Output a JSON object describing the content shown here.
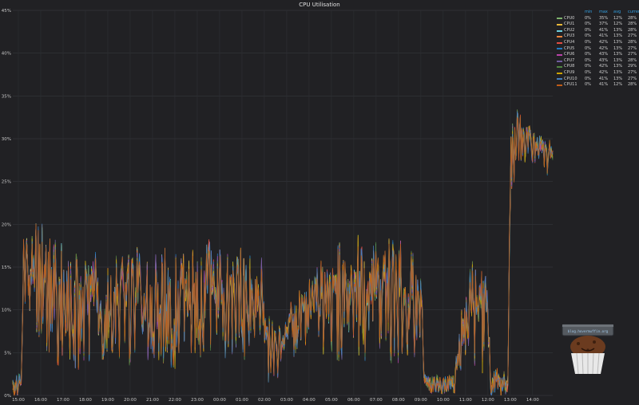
{
  "panel": {
    "title": "CPU Utilisation"
  },
  "logo": {
    "text": "blog.hovermuffin.org",
    "description": "muffin-logo"
  },
  "chart_data": {
    "type": "line",
    "title": "CPU Utilisation",
    "xlabel": "",
    "ylabel": "",
    "x_ticks": [
      "15:00",
      "16:00",
      "17:00",
      "18:00",
      "19:00",
      "20:00",
      "21:00",
      "22:00",
      "23:00",
      "00:00",
      "01:00",
      "02:00",
      "03:00",
      "04:00",
      "05:00",
      "06:00",
      "07:00",
      "08:00",
      "09:00",
      "10:00",
      "11:00",
      "12:00",
      "13:00",
      "14:00"
    ],
    "xlim_hours": [
      -0.25,
      23.9
    ],
    "y_ticks": [
      "0%",
      "5%",
      "10%",
      "15%",
      "20%",
      "25%",
      "30%",
      "35%",
      "40%",
      "45%"
    ],
    "ylim": [
      0,
      45
    ],
    "y_unit": "%",
    "grid": true,
    "legend_placement": "top-right",
    "legend_columns": [
      "min",
      "max",
      "avg",
      "current"
    ],
    "series": [
      {
        "name": "CPU0",
        "color": "#7eb26d",
        "min": "0%",
        "max": "35%",
        "avg": "12%",
        "current": "28%"
      },
      {
        "name": "CPU1",
        "color": "#eab839",
        "min": "0%",
        "max": "37%",
        "avg": "12%",
        "current": "28%"
      },
      {
        "name": "CPU2",
        "color": "#6ed0e0",
        "min": "0%",
        "max": "41%",
        "avg": "13%",
        "current": "28%"
      },
      {
        "name": "CPU3",
        "color": "#ef843c",
        "min": "0%",
        "max": "41%",
        "avg": "13%",
        "current": "27%"
      },
      {
        "name": "CPU4",
        "color": "#e24d42",
        "min": "0%",
        "max": "42%",
        "avg": "13%",
        "current": "28%"
      },
      {
        "name": "CPU5",
        "color": "#1f78c1",
        "min": "0%",
        "max": "42%",
        "avg": "13%",
        "current": "27%"
      },
      {
        "name": "CPU6",
        "color": "#ba43a9",
        "min": "0%",
        "max": "43%",
        "avg": "13%",
        "current": "27%"
      },
      {
        "name": "CPU7",
        "color": "#705da0",
        "min": "0%",
        "max": "43%",
        "avg": "13%",
        "current": "28%"
      },
      {
        "name": "CPU8",
        "color": "#508642",
        "min": "0%",
        "max": "42%",
        "avg": "13%",
        "current": "29%"
      },
      {
        "name": "CPU9",
        "color": "#cca300",
        "min": "0%",
        "max": "42%",
        "avg": "13%",
        "current": "27%"
      },
      {
        "name": "CPU10",
        "color": "#447ebc",
        "min": "0%",
        "max": "41%",
        "avg": "13%",
        "current": "27%"
      },
      {
        "name": "CPU11",
        "color": "#c15c17",
        "min": "0%",
        "max": "41%",
        "avg": "12%",
        "current": "28%"
      }
    ],
    "profile": {
      "description": "approximate shared utilisation envelope by hour offset from 15:00 (baseline, peak), in %",
      "hours": [
        -0.25,
        0.0,
        0.15,
        0.2,
        1.0,
        1.5,
        2.0,
        3.0,
        4.0,
        5.0,
        6.0,
        7.0,
        8.0,
        9.0,
        10.0,
        10.9,
        11.0,
        11.8,
        12.0,
        12.3,
        13.0,
        13.5,
        13.9,
        14.0,
        14.6,
        14.7,
        15.0,
        16.0,
        17.0,
        17.3,
        18.0,
        18.2,
        19.0,
        19.3,
        19.5,
        20.0,
        20.5,
        21.0,
        21.1,
        21.6,
        21.9,
        22.0,
        22.3,
        23.0,
        23.9
      ],
      "low": [
        0,
        0.3,
        0.5,
        10,
        6,
        5,
        4,
        4,
        5,
        4,
        5,
        4,
        5,
        5,
        5,
        5,
        2,
        2,
        6,
        4,
        7,
        5,
        6,
        5,
        5,
        3,
        5,
        5,
        4,
        5,
        5,
        1,
        0.5,
        0.5,
        0.5,
        5,
        4,
        3,
        0.5,
        0.5,
        0.2,
        20,
        27,
        27,
        26
      ],
      "high": [
        2,
        2,
        2,
        18,
        20,
        18,
        17,
        16,
        16,
        16,
        17,
        17,
        18,
        17,
        17,
        16,
        9,
        8,
        8,
        12,
        13,
        15,
        15,
        18,
        18,
        12,
        18,
        18,
        18,
        16,
        16,
        2,
        2,
        2,
        2,
        15,
        15,
        14,
        3,
        3,
        2,
        35,
        33,
        31,
        29
      ]
    }
  }
}
